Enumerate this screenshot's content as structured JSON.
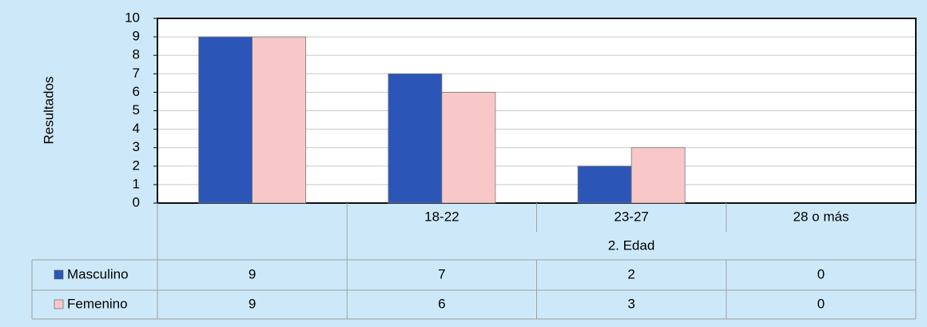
{
  "chart_data": {
    "type": "bar",
    "ylabel": "Resultados",
    "xlabel": "2. Edad",
    "categories": [
      null,
      "18-22",
      "23-27",
      "28 o más"
    ],
    "series": [
      {
        "name": "Masculino",
        "color": "#2b56b8",
        "values": [
          9,
          7,
          2,
          0
        ]
      },
      {
        "name": "Femenino",
        "color": "#f8c8c9",
        "values": [
          9,
          6,
          3,
          0
        ]
      }
    ],
    "ylim": [
      0,
      10
    ],
    "yticks": [
      0,
      1,
      2,
      3,
      4,
      5,
      6,
      7,
      8,
      9,
      10
    ],
    "grid": true
  }
}
